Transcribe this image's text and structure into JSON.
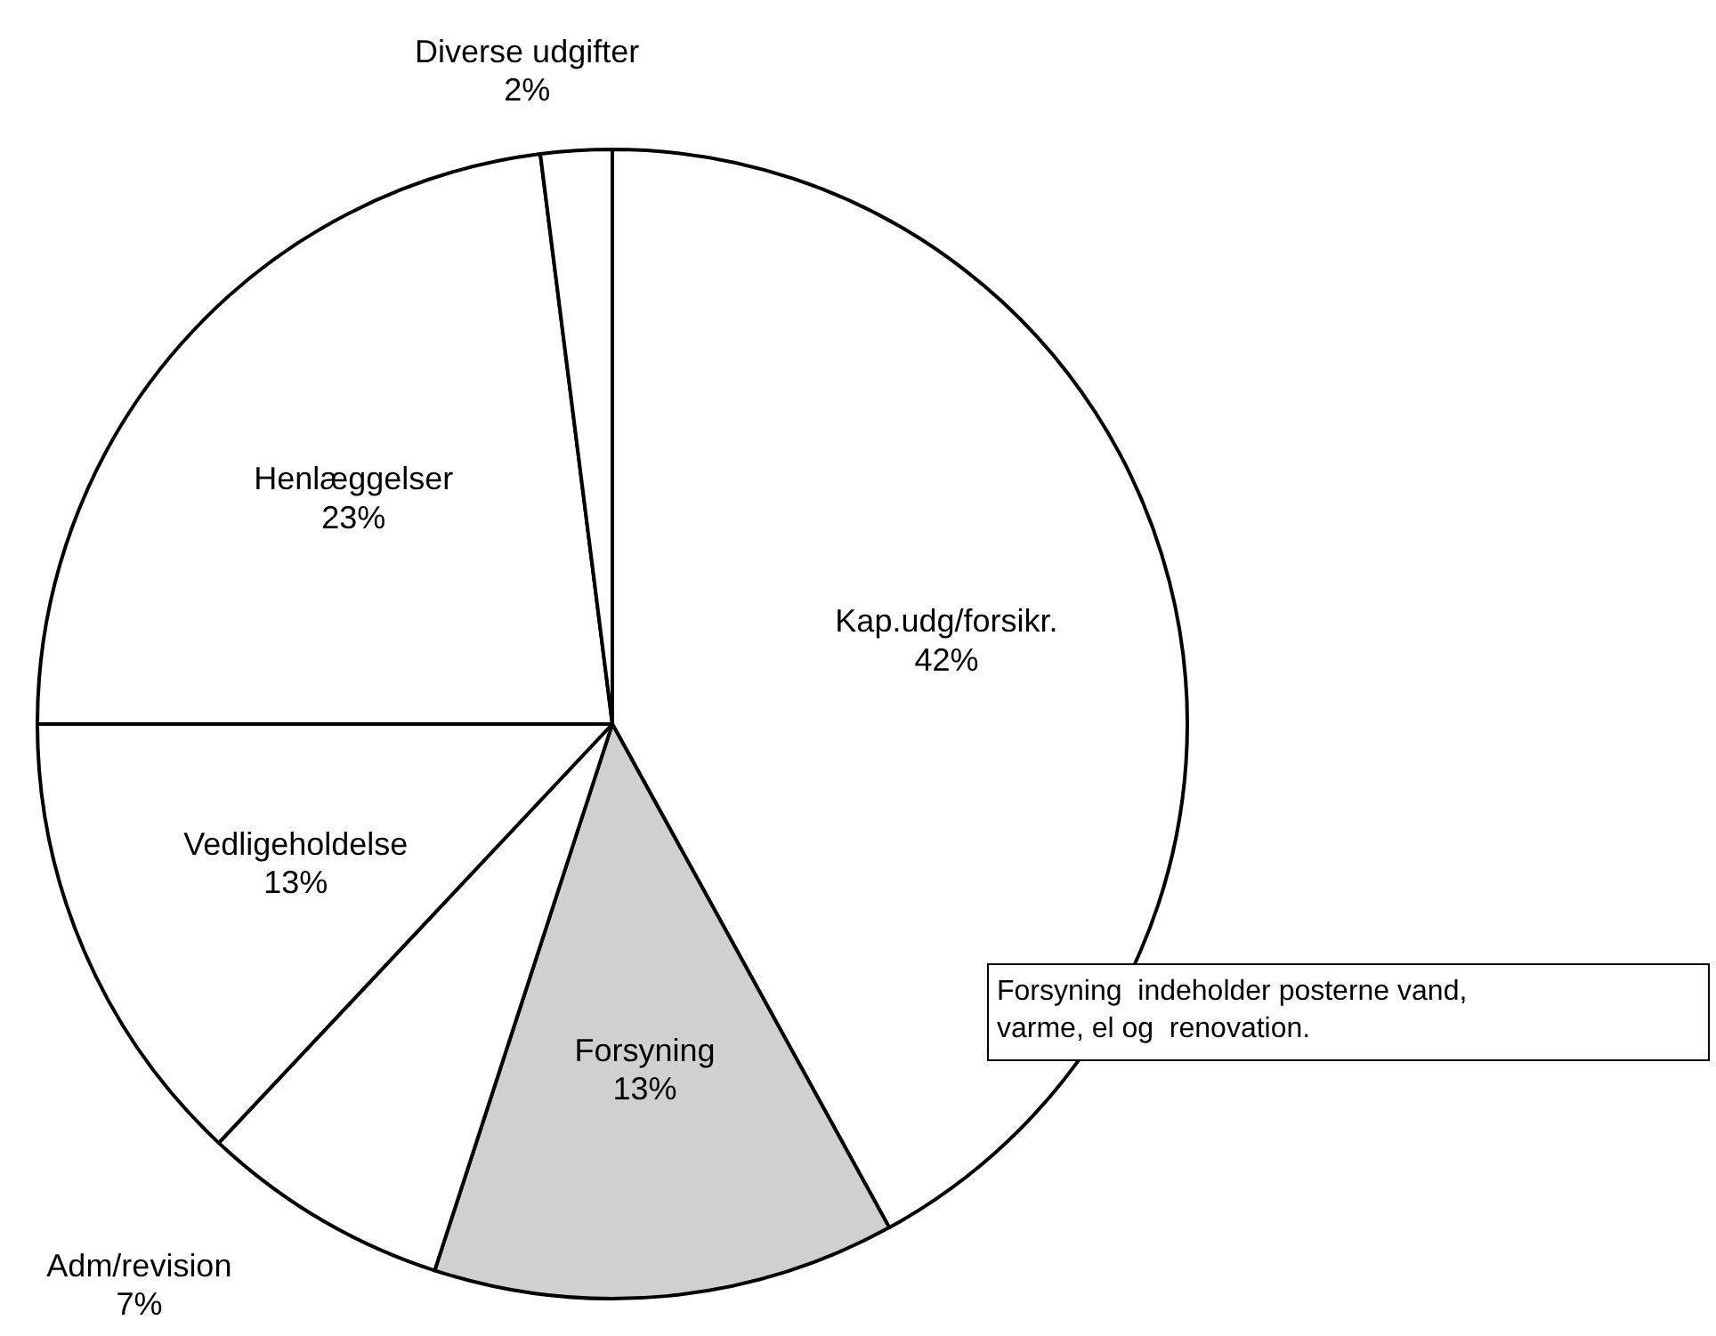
{
  "chart_data": {
    "type": "pie",
    "categories": [
      "Kap.udg/forsikr.",
      "Forsyning",
      "Adm/revision",
      "Vedligeholdelse",
      "Henlæggelser",
      "Diverse udgifter"
    ],
    "values": [
      42,
      13,
      7,
      13,
      23,
      2
    ],
    "colors": [
      "#ffffff",
      "#d0d0d0",
      "#ffffff",
      "#ffffff",
      "#ffffff",
      "#ffffff"
    ],
    "annotations": [
      "Forsyning  indeholder posterne vand, varme, el og  renovation."
    ],
    "value_labels": [
      "42%",
      "13%",
      "7%",
      "13%",
      "23%",
      "2%"
    ]
  }
}
